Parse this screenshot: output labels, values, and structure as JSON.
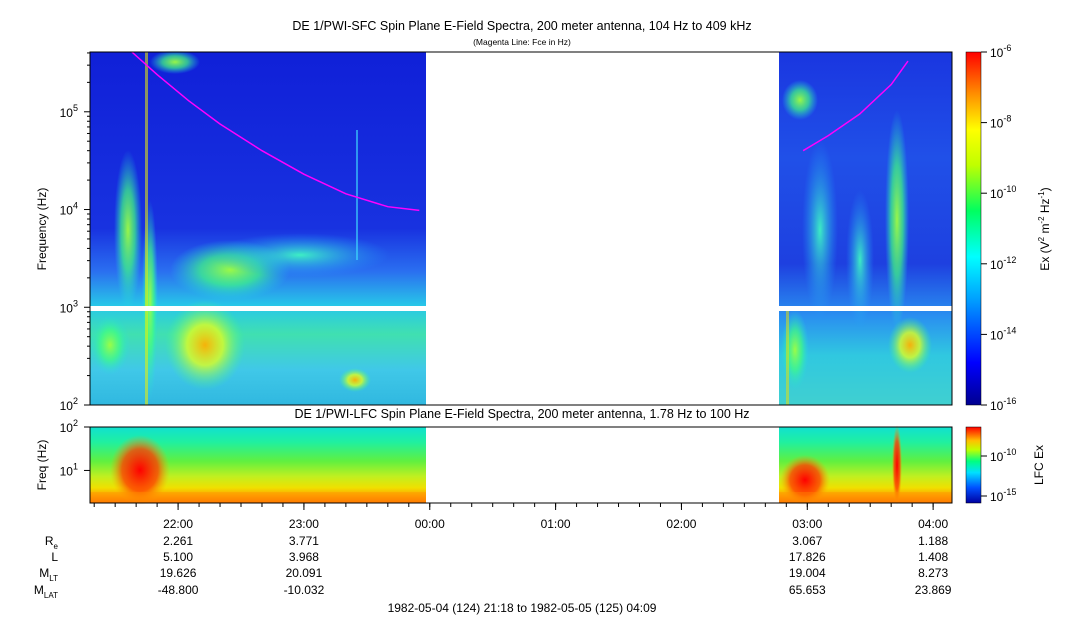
{
  "chart_data": [
    {
      "type": "heatmap",
      "title": "DE 1/PWI-SFC  Spin Plane E-Field Spectra, 200 meter antenna, 104 Hz to 409 kHz",
      "subtitle": "(Magenta Line: Fce in Hz)",
      "ylabel": "Frequency (Hz)",
      "yscale": "log",
      "ylim": [
        100,
        409000
      ],
      "yticks": [
        {
          "value": 100,
          "base": "10",
          "exp": "2"
        },
        {
          "value": 1000,
          "base": "10",
          "exp": "3"
        },
        {
          "value": 10000,
          "base": "10",
          "exp": "4"
        },
        {
          "value": 100000,
          "base": "10",
          "exp": "5"
        }
      ],
      "xlim": [
        "21:18",
        "04:09"
      ],
      "data_gap": [
        "00:00",
        "02:48"
      ],
      "colorbar": {
        "label": "Ex (V² m⁻² Hz⁻¹)",
        "label_parts": {
          "prefix": "Ex (V",
          "exp1": "2",
          "mid1": " m",
          "exp2": "-2",
          "mid2": " Hz",
          "exp3": "-1",
          "suffix": ")"
        },
        "scale": "log",
        "range": [
          1e-16,
          1e-06
        ],
        "ticks": [
          {
            "base": "10",
            "exp": "-6"
          },
          {
            "base": "10",
            "exp": "-8"
          },
          {
            "base": "10",
            "exp": "-10"
          },
          {
            "base": "10",
            "exp": "-12"
          },
          {
            "base": "10",
            "exp": "-14"
          },
          {
            "base": "10",
            "exp": "-16"
          }
        ]
      },
      "overlay_lines": [
        {
          "name": "Fce",
          "color": "#ff00ff",
          "segments": [
            {
              "x": [
                "21:38",
                "21:50",
                "22:05",
                "22:20",
                "22:40",
                "23:00",
                "23:20",
                "23:40",
                "23:55"
              ],
              "y": [
                409000,
                240000,
                130000,
                75000,
                40000,
                23000,
                14500,
                10700,
                9800
              ]
            },
            {
              "x": [
                "02:58",
                "03:10",
                "03:25",
                "03:40",
                "03:48"
              ],
              "y": [
                40000,
                57000,
                95000,
                190000,
                330000
              ]
            }
          ]
        }
      ]
    },
    {
      "type": "heatmap",
      "title": "DE 1/PWI-LFC  Spin Plane E-Field Spectra, 200 meter antenna, 1.78 Hz to 100 Hz",
      "ylabel": "Freq (Hz)",
      "yscale": "log",
      "ylim": [
        1.78,
        100
      ],
      "yticks": [
        {
          "value": 10,
          "base": "10",
          "exp": "1"
        },
        {
          "value": 100,
          "base": "10",
          "exp": "2"
        }
      ],
      "data_gap": [
        "00:00",
        "02:48"
      ],
      "colorbar": {
        "label": "LFC Ex",
        "scale": "log",
        "ticks": [
          {
            "base": "10",
            "exp": "-10"
          },
          {
            "base": "10",
            "exp": "-15"
          }
        ]
      }
    }
  ],
  "xaxis": {
    "ticks": [
      "22:00",
      "23:00",
      "00:00",
      "01:00",
      "02:00",
      "03:00",
      "04:00"
    ]
  },
  "ephemeris": {
    "rows": [
      {
        "label_base": "R",
        "label_sub": "e",
        "values": [
          "2.261",
          "3.771",
          "",
          "",
          "",
          "3.067",
          "1.188"
        ]
      },
      {
        "label_base": "L",
        "label_sub": "",
        "values": [
          "5.100",
          "3.968",
          "",
          "",
          "",
          "17.826",
          "1.408"
        ]
      },
      {
        "label_base": "M",
        "label_sub": "LT",
        "values": [
          "19.626",
          "20.091",
          "",
          "",
          "",
          "19.004",
          "8.273"
        ]
      },
      {
        "label_base": "M",
        "label_sub": "LAT",
        "values": [
          "-48.800",
          "-10.032",
          "",
          "",
          "",
          "65.653",
          "23.869"
        ]
      }
    ]
  },
  "footer": "1982-05-04 (124) 21:18 to 1982-05-05 (125) 04:09"
}
